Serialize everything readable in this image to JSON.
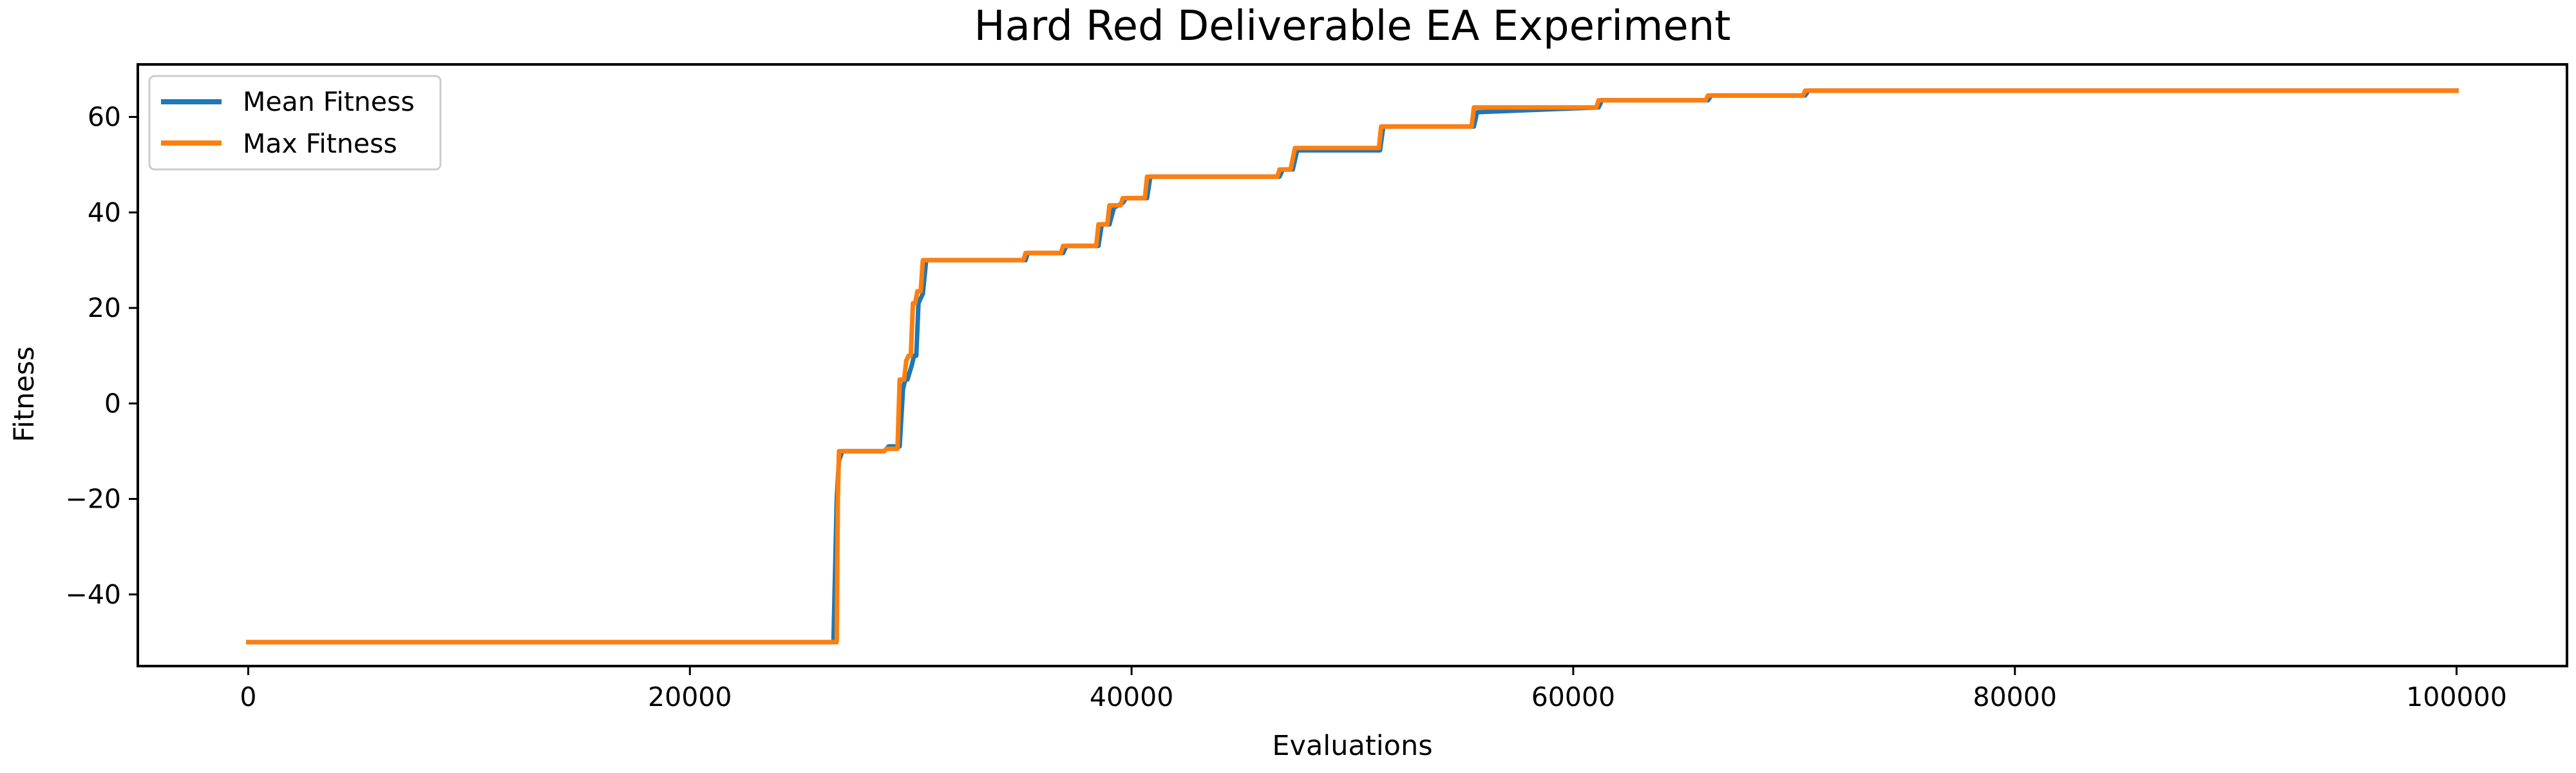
{
  "chart_data": {
    "type": "line",
    "title": "Hard Red Deliverable EA Experiment",
    "xlabel": "Evaluations",
    "ylabel": "Fitness",
    "xlim": [
      -5000,
      105000
    ],
    "ylim": [
      -55,
      71
    ],
    "xticks": [
      0,
      20000,
      40000,
      60000,
      80000,
      100000
    ],
    "yticks": [
      -40,
      -20,
      0,
      20,
      40,
      60
    ],
    "xtick_labels": [
      "0",
      "20000",
      "40000",
      "60000",
      "80000",
      "100000"
    ],
    "ytick_labels": [
      "−40",
      "−20",
      "0",
      "20",
      "40",
      "60"
    ],
    "grid": false,
    "legend": "upper-left",
    "series": [
      {
        "name": "Mean Fitness",
        "color": "#1f77b4",
        "x": [
          0,
          26500,
          26550,
          26650,
          26750,
          26900,
          28800,
          29000,
          29500,
          29650,
          29750,
          29850,
          30050,
          30150,
          30250,
          30350,
          30550,
          30700,
          35200,
          35300,
          36900,
          37050,
          38500,
          38650,
          39000,
          39200,
          39600,
          39750,
          40700,
          40850,
          46700,
          46850,
          47300,
          47500,
          51250,
          51400,
          55500,
          55650,
          61150,
          61300,
          66100,
          66250,
          70500,
          70650,
          100000
        ],
        "y": [
          -50,
          -50,
          -40,
          -20,
          -12,
          -10,
          -10,
          -9,
          -9,
          3,
          5,
          5,
          8,
          10,
          10,
          21,
          23,
          30,
          30,
          31.5,
          31.5,
          33,
          33,
          37.5,
          37.5,
          41,
          42,
          43,
          43,
          47.5,
          47.5,
          49,
          49,
          53,
          53,
          58,
          58,
          61,
          62,
          63.5,
          63.5,
          64.5,
          64.5,
          65.5,
          65.5
        ]
      },
      {
        "name": "Max Fitness",
        "color": "#ff7f0e",
        "x": [
          0,
          26650,
          26700,
          26750,
          28800,
          28900,
          29400,
          29500,
          29600,
          29700,
          29800,
          29900,
          30000,
          30100,
          30200,
          30300,
          30450,
          30550,
          35100,
          35200,
          36800,
          36900,
          38400,
          38500,
          38900,
          39000,
          39500,
          39600,
          40600,
          40700,
          46600,
          46700,
          47200,
          47400,
          51200,
          51300,
          55400,
          55500,
          61050,
          61150,
          66000,
          66100,
          70400,
          70500,
          100000
        ],
        "y": [
          -50,
          -50,
          -20,
          -10,
          -10,
          -9.5,
          -9.5,
          5,
          5,
          5,
          9,
          10,
          10,
          21,
          21,
          23.5,
          23.5,
          30,
          30,
          31.5,
          31.5,
          33,
          33,
          37.5,
          37.5,
          41.5,
          41.5,
          43,
          43,
          47.5,
          47.5,
          49,
          49,
          53.5,
          53.5,
          58,
          58,
          62,
          62,
          63.5,
          63.5,
          64.5,
          64.5,
          65.5,
          65.5
        ]
      }
    ]
  }
}
